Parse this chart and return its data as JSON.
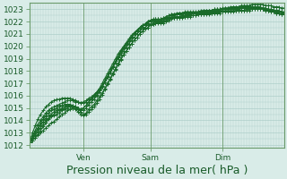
{
  "title": "",
  "xlabel": "Pression niveau de la mer( hPa )",
  "ylabel": "",
  "ylim": [
    1011.8,
    1023.5
  ],
  "xlim": [
    0,
    95
  ],
  "yticks": [
    1012,
    1013,
    1014,
    1015,
    1016,
    1017,
    1018,
    1019,
    1020,
    1021,
    1022,
    1023
  ],
  "xtick_positions": [
    20,
    45,
    72
  ],
  "xtick_labels": [
    "Ven",
    "Sam",
    "Dim"
  ],
  "bg_color": "#d9ece8",
  "grid_color": "#aecfca",
  "line_color": "#1a6b2a",
  "marker_color": "#1a6b2a",
  "border_color": "#6b9b6b",
  "tick_label_color": "#1a5c2a",
  "xlabel_color": "#1a5c2a",
  "xlabel_fontsize": 9,
  "tick_fontsize": 6.5,
  "line_width": 0.8,
  "n_hours": 96,
  "series": [
    [
      1012.2,
      1012.4,
      1012.6,
      1012.8,
      1013.0,
      1013.2,
      1013.4,
      1013.6,
      1013.8,
      1013.9,
      1014.1,
      1014.3,
      1014.5,
      1014.6,
      1014.8,
      1014.9,
      1015.0,
      1015.0,
      1014.9,
      1014.7,
      1014.5,
      1014.5,
      1014.7,
      1014.9,
      1015.1,
      1015.4,
      1015.7,
      1016.1,
      1016.5,
      1016.9,
      1017.3,
      1017.7,
      1018.1,
      1018.5,
      1018.9,
      1019.3,
      1019.6,
      1019.9,
      1020.2,
      1020.5,
      1020.7,
      1021.0,
      1021.2,
      1021.4,
      1021.5,
      1021.7,
      1021.8,
      1021.9,
      1022.0,
      1022.0,
      1022.0,
      1022.1,
      1022.2,
      1022.3,
      1022.3,
      1022.3,
      1022.3,
      1022.3,
      1022.4,
      1022.5,
      1022.6,
      1022.7,
      1022.7,
      1022.7,
      1022.7,
      1022.7,
      1022.7,
      1022.7,
      1022.8,
      1022.8,
      1022.9,
      1022.9,
      1023.0,
      1023.0,
      1023.0,
      1023.0,
      1023.1,
      1023.1,
      1023.1,
      1023.1,
      1023.1,
      1023.1,
      1023.1,
      1023.1,
      1023.1,
      1023.1,
      1023.1,
      1023.0,
      1023.0,
      1023.0,
      1022.9,
      1022.9,
      1022.8,
      1022.8,
      1022.7,
      1022.7
    ],
    [
      1012.2,
      1012.5,
      1012.8,
      1013.1,
      1013.4,
      1013.7,
      1014.0,
      1014.2,
      1014.4,
      1014.5,
      1014.7,
      1014.8,
      1014.9,
      1015.0,
      1015.1,
      1015.2,
      1015.1,
      1015.1,
      1015.0,
      1014.8,
      1014.8,
      1015.0,
      1015.3,
      1015.5,
      1015.7,
      1016.0,
      1016.3,
      1016.7,
      1017.1,
      1017.5,
      1017.9,
      1018.3,
      1018.7,
      1019.1,
      1019.5,
      1019.8,
      1020.1,
      1020.4,
      1020.7,
      1021.0,
      1021.2,
      1021.4,
      1021.6,
      1021.7,
      1021.9,
      1022.0,
      1022.1,
      1022.1,
      1022.1,
      1022.1,
      1022.1,
      1022.2,
      1022.3,
      1022.4,
      1022.4,
      1022.4,
      1022.4,
      1022.5,
      1022.5,
      1022.6,
      1022.7,
      1022.7,
      1022.7,
      1022.7,
      1022.7,
      1022.7,
      1022.8,
      1022.8,
      1022.8,
      1022.9,
      1022.9,
      1022.9,
      1022.9,
      1023.0,
      1023.0,
      1023.0,
      1023.0,
      1023.0,
      1023.0,
      1023.1,
      1023.1,
      1023.1,
      1023.1,
      1023.1,
      1023.1,
      1023.1,
      1023.0,
      1023.0,
      1023.0,
      1022.9,
      1022.9,
      1022.9,
      1022.8,
      1022.8,
      1022.8,
      1022.7
    ],
    [
      1012.2,
      1012.6,
      1013.0,
      1013.3,
      1013.6,
      1013.9,
      1014.2,
      1014.4,
      1014.5,
      1014.7,
      1014.8,
      1014.9,
      1015.0,
      1015.1,
      1015.2,
      1015.2,
      1015.2,
      1015.1,
      1015.0,
      1014.9,
      1015.0,
      1015.2,
      1015.5,
      1015.7,
      1016.0,
      1016.3,
      1016.6,
      1017.0,
      1017.4,
      1017.8,
      1018.2,
      1018.6,
      1019.0,
      1019.4,
      1019.7,
      1020.0,
      1020.3,
      1020.6,
      1020.9,
      1021.1,
      1021.3,
      1021.5,
      1021.7,
      1021.8,
      1022.0,
      1022.1,
      1022.1,
      1022.2,
      1022.2,
      1022.2,
      1022.3,
      1022.4,
      1022.5,
      1022.6,
      1022.6,
      1022.6,
      1022.7,
      1022.7,
      1022.7,
      1022.7,
      1022.7,
      1022.7,
      1022.7,
      1022.8,
      1022.8,
      1022.9,
      1022.9,
      1022.9,
      1022.9,
      1023.0,
      1023.0,
      1023.0,
      1023.1,
      1023.1,
      1023.1,
      1023.2,
      1023.2,
      1023.2,
      1023.2,
      1023.2,
      1023.2,
      1023.2,
      1023.2,
      1023.2,
      1023.2,
      1023.2,
      1023.2,
      1023.1,
      1023.1,
      1023.0,
      1023.0,
      1022.9,
      1022.9,
      1022.9,
      1022.8,
      1022.8
    ],
    [
      1012.2,
      1012.7,
      1013.2,
      1013.7,
      1014.0,
      1014.3,
      1014.6,
      1014.8,
      1015.0,
      1015.1,
      1015.2,
      1015.3,
      1015.4,
      1015.5,
      1015.6,
      1015.6,
      1015.6,
      1015.5,
      1015.5,
      1015.4,
      1015.4,
      1015.5,
      1015.7,
      1015.8,
      1016.0,
      1016.2,
      1016.5,
      1016.8,
      1017.2,
      1017.6,
      1018.0,
      1018.4,
      1018.8,
      1019.2,
      1019.6,
      1019.9,
      1020.2,
      1020.5,
      1020.8,
      1021.1,
      1021.3,
      1021.5,
      1021.7,
      1021.8,
      1022.0,
      1022.1,
      1022.2,
      1022.2,
      1022.2,
      1022.2,
      1022.3,
      1022.4,
      1022.5,
      1022.6,
      1022.6,
      1022.7,
      1022.7,
      1022.7,
      1022.8,
      1022.8,
      1022.8,
      1022.8,
      1022.8,
      1022.8,
      1022.9,
      1022.9,
      1022.9,
      1022.9,
      1022.9,
      1023.0,
      1023.0,
      1023.0,
      1023.0,
      1023.1,
      1023.1,
      1023.1,
      1023.2,
      1023.2,
      1023.2,
      1023.3,
      1023.3,
      1023.3,
      1023.3,
      1023.4,
      1023.4,
      1023.4,
      1023.4,
      1023.4,
      1023.3,
      1023.3,
      1023.3,
      1023.2,
      1023.2,
      1023.2,
      1023.1,
      1023.1
    ],
    [
      1012.2,
      1012.6,
      1013.0,
      1013.4,
      1013.8,
      1014.1,
      1014.4,
      1014.6,
      1014.8,
      1014.9,
      1015.0,
      1015.1,
      1015.2,
      1015.3,
      1015.3,
      1015.3,
      1015.2,
      1015.1,
      1015.0,
      1014.9,
      1015.0,
      1015.2,
      1015.5,
      1015.7,
      1015.9,
      1016.1,
      1016.4,
      1016.7,
      1017.1,
      1017.5,
      1017.9,
      1018.3,
      1018.7,
      1019.1,
      1019.5,
      1019.8,
      1020.1,
      1020.4,
      1020.7,
      1021.0,
      1021.2,
      1021.4,
      1021.6,
      1021.8,
      1021.9,
      1022.0,
      1022.1,
      1022.1,
      1022.1,
      1022.1,
      1022.2,
      1022.3,
      1022.4,
      1022.5,
      1022.5,
      1022.6,
      1022.6,
      1022.6,
      1022.7,
      1022.7,
      1022.7,
      1022.7,
      1022.7,
      1022.8,
      1022.8,
      1022.8,
      1022.8,
      1022.9,
      1022.9,
      1022.9,
      1022.9,
      1023.0,
      1023.0,
      1023.0,
      1023.0,
      1023.0,
      1023.1,
      1023.1,
      1023.1,
      1023.1,
      1023.2,
      1023.2,
      1023.2,
      1023.2,
      1023.2,
      1023.2,
      1023.2,
      1023.1,
      1023.1,
      1023.0,
      1023.0,
      1022.9,
      1022.9,
      1022.9,
      1022.8,
      1022.7
    ],
    [
      1012.2,
      1012.4,
      1012.6,
      1012.9,
      1013.2,
      1013.5,
      1013.8,
      1014.1,
      1014.3,
      1014.4,
      1014.5,
      1014.6,
      1014.8,
      1014.9,
      1015.0,
      1015.1,
      1015.0,
      1014.9,
      1014.7,
      1014.5,
      1014.4,
      1014.6,
      1014.9,
      1015.1,
      1015.3,
      1015.6,
      1015.9,
      1016.2,
      1016.6,
      1017.0,
      1017.4,
      1017.8,
      1018.2,
      1018.6,
      1019.0,
      1019.3,
      1019.6,
      1019.9,
      1020.2,
      1020.5,
      1020.7,
      1021.0,
      1021.2,
      1021.4,
      1021.5,
      1021.7,
      1021.8,
      1021.9,
      1021.9,
      1021.9,
      1021.9,
      1022.0,
      1022.1,
      1022.2,
      1022.3,
      1022.3,
      1022.3,
      1022.4,
      1022.4,
      1022.4,
      1022.4,
      1022.5,
      1022.5,
      1022.6,
      1022.6,
      1022.6,
      1022.7,
      1022.7,
      1022.7,
      1022.8,
      1022.8,
      1022.8,
      1022.8,
      1022.9,
      1022.9,
      1022.9,
      1022.9,
      1022.9,
      1022.9,
      1022.9,
      1022.9,
      1023.0,
      1023.0,
      1023.0,
      1023.0,
      1023.0,
      1023.0,
      1023.0,
      1022.9,
      1022.9,
      1022.8,
      1022.8,
      1022.7,
      1022.7,
      1022.6,
      1022.6
    ],
    [
      1012.3,
      1013.0,
      1013.6,
      1014.1,
      1014.5,
      1014.8,
      1015.1,
      1015.3,
      1015.5,
      1015.6,
      1015.7,
      1015.7,
      1015.8,
      1015.8,
      1015.8,
      1015.8,
      1015.7,
      1015.6,
      1015.5,
      1015.4,
      1015.5,
      1015.6,
      1015.8,
      1015.9,
      1016.1,
      1016.3,
      1016.5,
      1016.8,
      1017.1,
      1017.5,
      1017.9,
      1018.3,
      1018.7,
      1019.0,
      1019.3,
      1019.6,
      1019.9,
      1020.2,
      1020.5,
      1020.7,
      1021.0,
      1021.2,
      1021.4,
      1021.5,
      1021.7,
      1021.8,
      1021.9,
      1022.0,
      1022.0,
      1022.0,
      1022.0,
      1022.1,
      1022.2,
      1022.3,
      1022.3,
      1022.4,
      1022.4,
      1022.4,
      1022.5,
      1022.5,
      1022.5,
      1022.5,
      1022.5,
      1022.6,
      1022.6,
      1022.6,
      1022.6,
      1022.6,
      1022.7,
      1022.7,
      1022.7,
      1022.7,
      1022.8,
      1022.8,
      1022.8,
      1022.8,
      1022.8,
      1022.9,
      1022.9,
      1022.9,
      1022.9,
      1022.9,
      1022.9,
      1023.0,
      1023.0,
      1023.0,
      1023.0,
      1023.0,
      1022.9,
      1022.9,
      1022.8,
      1022.8,
      1022.7,
      1022.7,
      1022.6,
      1022.6
    ]
  ]
}
